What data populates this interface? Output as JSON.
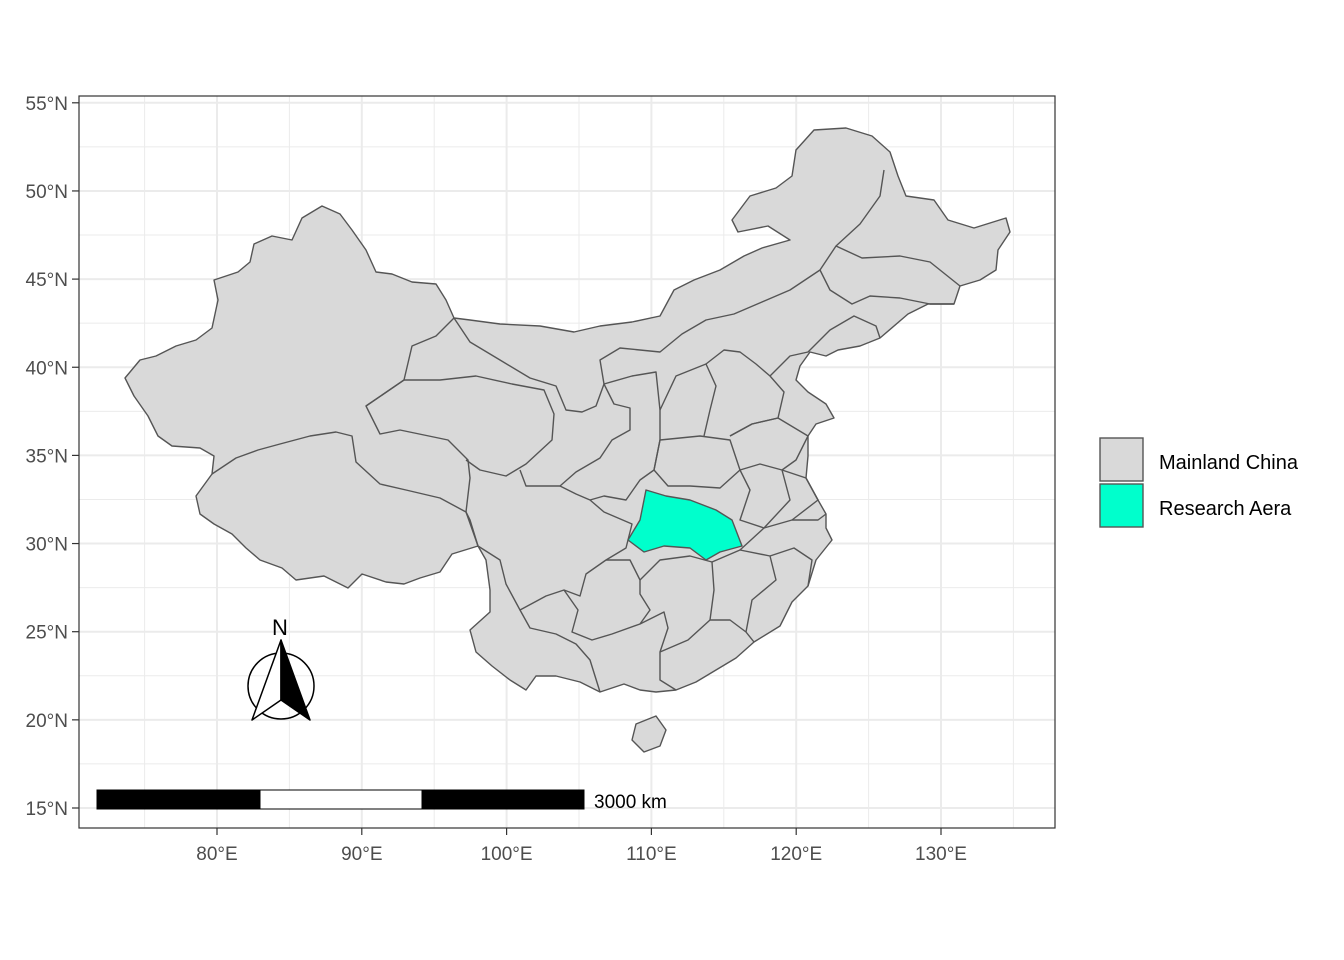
{
  "map": {
    "x_axis": {
      "unit": "°E",
      "ticks": [
        {
          "value": 80,
          "label": "80°E"
        },
        {
          "value": 90,
          "label": "90°E"
        },
        {
          "value": 100,
          "label": "100°E"
        },
        {
          "value": 110,
          "label": "110°E"
        },
        {
          "value": 120,
          "label": "120°E"
        },
        {
          "value": 130,
          "label": "130°E"
        }
      ]
    },
    "y_axis": {
      "unit": "°N",
      "ticks": [
        {
          "value": 15,
          "label": "15°N"
        },
        {
          "value": 20,
          "label": "20°N"
        },
        {
          "value": 25,
          "label": "25°N"
        },
        {
          "value": 30,
          "label": "30°N"
        },
        {
          "value": 35,
          "label": "35°N"
        },
        {
          "value": 40,
          "label": "40°N"
        },
        {
          "value": 45,
          "label": "45°N"
        },
        {
          "value": 50,
          "label": "50°N"
        },
        {
          "value": 55,
          "label": "55°N"
        }
      ]
    },
    "extent": {
      "lon": [
        71.0,
        138.5
      ],
      "lat": [
        14.4,
        55.4
      ]
    },
    "grid": true,
    "colors": {
      "mainland": "#d9d9d9",
      "research": "#00ffcc",
      "border": "#555555",
      "grid": "#ebebeb",
      "panel_border": "#333333"
    },
    "legend": {
      "position": "right",
      "items": [
        {
          "label": "Mainland China",
          "color": "#d9d9d9"
        },
        {
          "label": "Research Aera",
          "color": "#00ffcc"
        }
      ]
    },
    "scale_bar": {
      "label": "3000 km",
      "segments": 3,
      "position": "bottom-left"
    },
    "north_arrow": {
      "label": "N",
      "position": "bottom-left"
    }
  }
}
